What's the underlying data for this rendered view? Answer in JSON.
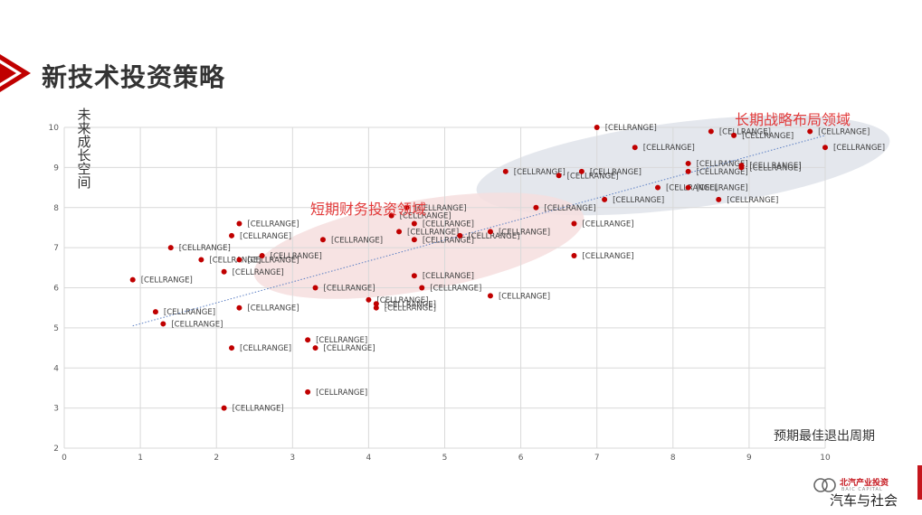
{
  "page": {
    "title": "新技术投资策略"
  },
  "regions": {
    "long_term": "长期战略布局领域",
    "short_term": "短期财务投资领域"
  },
  "logo": {
    "cn": "北汽产业投资",
    "en": "BAIC CAPITAL"
  },
  "watermark": "汽车与社会",
  "colors": {
    "accent": "#c00000",
    "trend": "#5b7fc4",
    "long_region": "#dfe3ea",
    "short_region": "#f6dede"
  },
  "chart_data": {
    "type": "scatter",
    "xlabel": "预期最佳退出周期",
    "ylabel": "未来成长空间",
    "xlim": [
      0,
      10
    ],
    "ylim": [
      2,
      10
    ],
    "x_ticks": [
      "0",
      "1",
      "2",
      "3",
      "4",
      "5",
      "6",
      "7",
      "8",
      "9",
      "10"
    ],
    "y_ticks": [
      "2",
      "3",
      "4",
      "5",
      "6",
      "7",
      "8",
      "9",
      "10"
    ],
    "grid": true,
    "trendline": {
      "style": "dotted",
      "from": [
        0.9,
        5.05
      ],
      "to": [
        10,
        9.8
      ]
    },
    "point_label": "[CELLRANGE]",
    "points": [
      [
        0.9,
        6.2
      ],
      [
        1.2,
        5.4
      ],
      [
        1.3,
        5.1
      ],
      [
        1.4,
        7.0
      ],
      [
        1.8,
        6.7
      ],
      [
        2.1,
        6.4
      ],
      [
        2.1,
        3.0
      ],
      [
        2.2,
        7.3
      ],
      [
        2.2,
        4.5
      ],
      [
        2.3,
        7.6
      ],
      [
        2.3,
        6.7
      ],
      [
        2.3,
        5.5
      ],
      [
        2.6,
        6.8
      ],
      [
        3.2,
        4.7
      ],
      [
        3.2,
        3.4
      ],
      [
        3.3,
        6.0
      ],
      [
        3.3,
        4.5
      ],
      [
        3.4,
        7.2
      ],
      [
        4.0,
        5.7
      ],
      [
        4.1,
        5.6
      ],
      [
        4.1,
        5.5
      ],
      [
        4.3,
        7.8
      ],
      [
        4.4,
        7.4
      ],
      [
        4.5,
        8.0
      ],
      [
        4.6,
        7.6
      ],
      [
        4.6,
        7.2
      ],
      [
        4.6,
        6.3
      ],
      [
        4.7,
        6.0
      ],
      [
        5.2,
        7.3
      ],
      [
        5.6,
        7.4
      ],
      [
        5.6,
        5.8
      ],
      [
        5.8,
        8.9
      ],
      [
        6.2,
        8.0
      ],
      [
        6.5,
        8.8
      ],
      [
        6.7,
        7.6
      ],
      [
        6.7,
        6.8
      ],
      [
        6.8,
        8.9
      ],
      [
        7.0,
        10.0
      ],
      [
        7.1,
        8.2
      ],
      [
        7.5,
        9.5
      ],
      [
        7.8,
        8.5
      ],
      [
        8.2,
        9.1
      ],
      [
        8.2,
        8.9
      ],
      [
        8.2,
        8.5
      ],
      [
        8.5,
        9.9
      ],
      [
        8.6,
        8.2
      ],
      [
        8.8,
        9.8
      ],
      [
        8.9,
        9.0
      ],
      [
        8.9,
        9.05
      ],
      [
        9.8,
        9.9
      ],
      [
        10.0,
        9.5
      ]
    ]
  }
}
